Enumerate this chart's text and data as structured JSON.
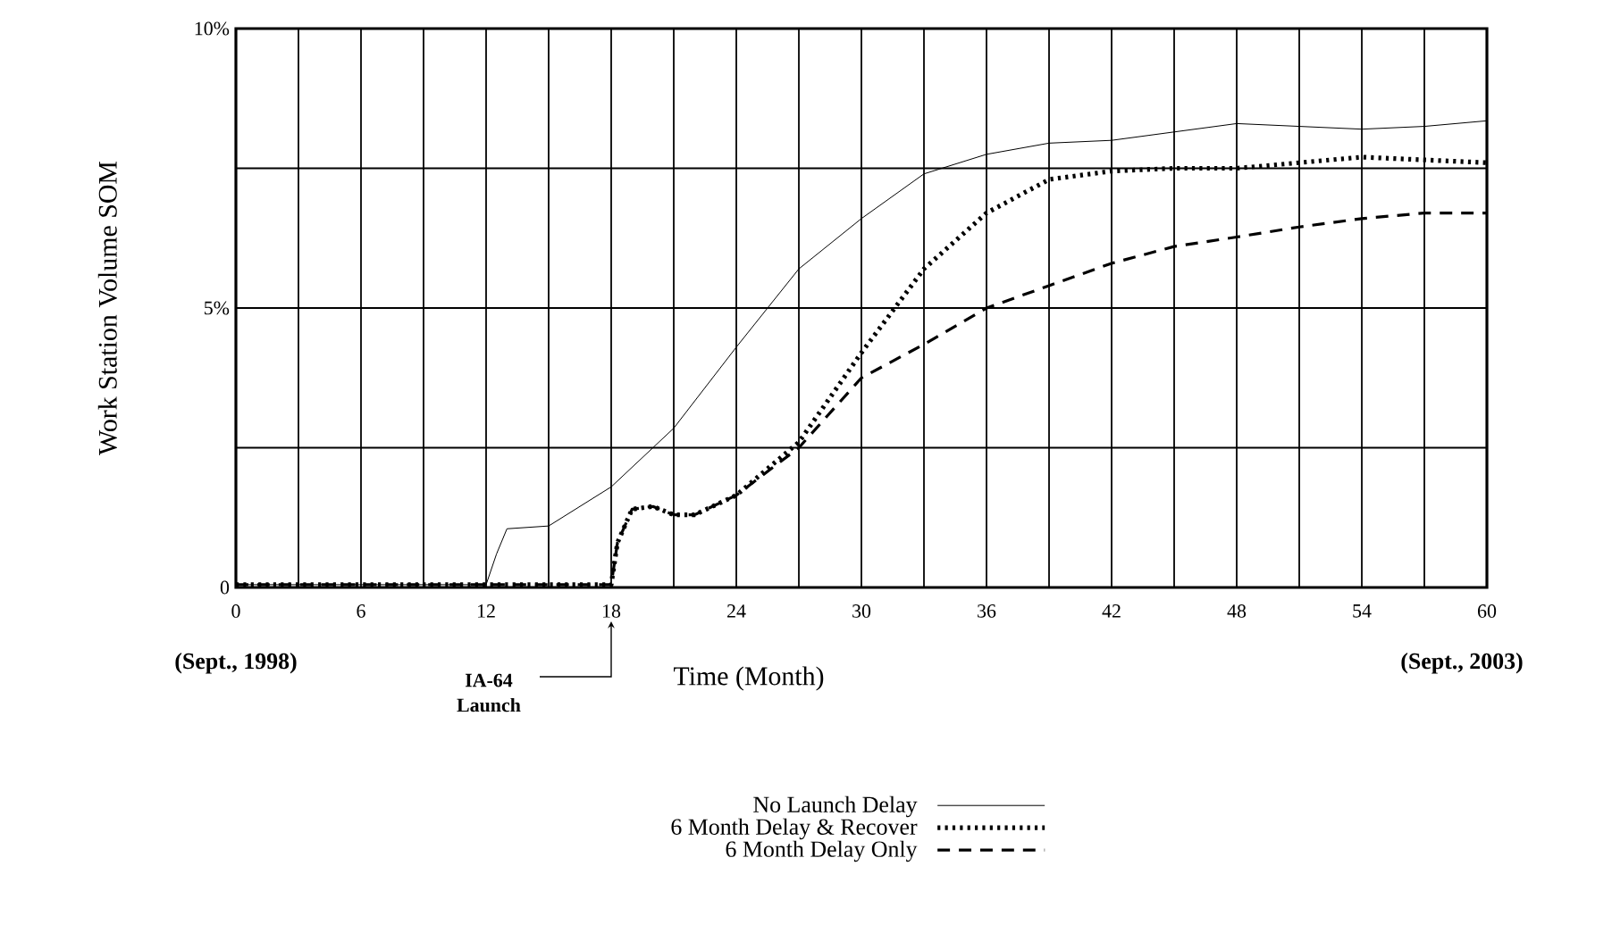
{
  "chart_data": {
    "type": "line",
    "xlabel": "Time (Month)",
    "ylabel": "Work Station Volume SOM",
    "xlim": [
      0,
      60
    ],
    "ylim": [
      0,
      10
    ],
    "xticks": [
      0,
      {
        "value": 3,
        "label": null
      },
      6,
      {
        "value": 9,
        "label": null
      },
      12,
      {
        "value": 15,
        "label": null
      },
      18,
      {
        "value": 21,
        "label": null
      },
      24,
      {
        "value": 27,
        "label": null
      },
      30,
      {
        "value": 33,
        "label": null
      },
      36,
      {
        "value": 39,
        "label": null
      },
      42,
      {
        "value": 45,
        "label": null
      },
      48,
      {
        "value": 51,
        "label": null
      },
      54,
      {
        "value": 57,
        "label": null
      },
      60
    ],
    "yticks": [
      {
        "value": 0,
        "label": "0"
      },
      {
        "value": 2.5,
        "label": null
      },
      {
        "value": 5,
        "label": "5%"
      },
      {
        "value": 7.5,
        "label": null
      },
      {
        "value": 10,
        "label": "10%"
      }
    ],
    "grid": true,
    "legend": "bottom",
    "series": [
      {
        "name": "No Launch Delay",
        "color": "#000000",
        "line_style": "solid",
        "x": [
          0,
          6,
          12,
          12.5,
          13,
          15,
          18,
          21,
          24,
          27,
          30,
          33,
          36,
          39,
          42,
          45,
          48,
          51,
          54,
          57,
          60
        ],
        "values": [
          0.05,
          0.05,
          0.05,
          0.6,
          1.05,
          1.1,
          1.8,
          2.85,
          4.3,
          5.7,
          6.6,
          7.4,
          7.75,
          7.95,
          8.0,
          8.15,
          8.3,
          8.25,
          8.2,
          8.25,
          8.35
        ]
      },
      {
        "name": "6 Month Delay & Recover",
        "color": "#000000",
        "line_style": "dotted",
        "x": [
          0,
          6,
          12,
          18,
          18.3,
          19,
          20,
          21,
          22,
          24,
          27,
          30,
          33,
          36,
          39,
          42,
          45,
          48,
          51,
          54,
          57,
          60
        ],
        "values": [
          0.05,
          0.05,
          0.05,
          0.05,
          0.8,
          1.4,
          1.45,
          1.3,
          1.3,
          1.65,
          2.6,
          4.2,
          5.7,
          6.7,
          7.3,
          7.45,
          7.5,
          7.5,
          7.6,
          7.7,
          7.65,
          7.6
        ]
      },
      {
        "name": "6 Month Delay Only",
        "color": "#000000",
        "line_style": "dashed",
        "x": [
          0,
          6,
          12,
          18,
          18.3,
          19,
          20,
          21,
          22,
          24,
          27,
          30,
          33,
          36,
          39,
          42,
          45,
          48,
          51,
          54,
          57,
          60
        ],
        "values": [
          0.05,
          0.05,
          0.05,
          0.05,
          0.8,
          1.4,
          1.45,
          1.3,
          1.3,
          1.65,
          2.5,
          3.75,
          4.35,
          5.0,
          5.4,
          5.8,
          6.1,
          6.27,
          6.45,
          6.6,
          6.7,
          6.7
        ]
      }
    ],
    "annotations": [
      "(Sept., 1998)",
      "(Sept., 2003)",
      "IA-64 Launch"
    ]
  }
}
